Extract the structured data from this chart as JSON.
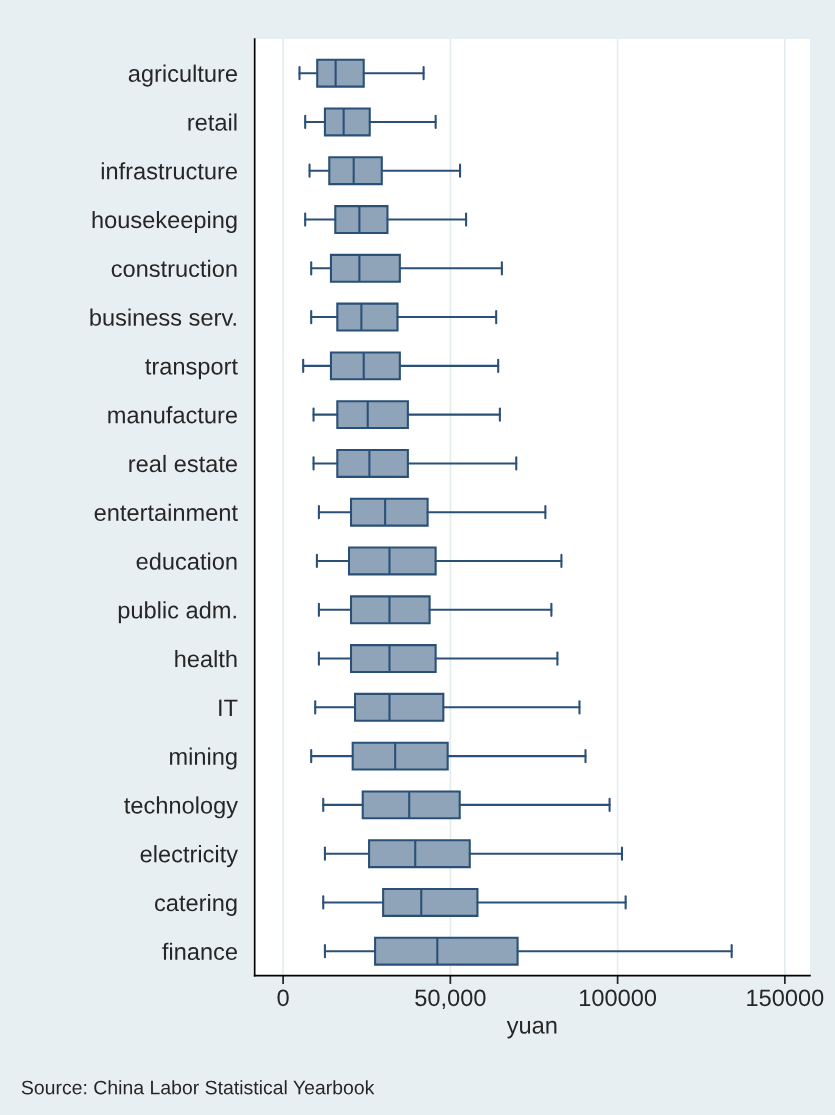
{
  "chart_data": {
    "type": "box",
    "orientation": "horizontal",
    "xlabel": "yuan",
    "categories": [
      "agriculture",
      "retail",
      "infrastructure",
      "housekeeping",
      "construction",
      "business serv.",
      "transport",
      "manufacture",
      "real estate",
      "entertainment",
      "education",
      "public adm.",
      "health",
      "IT",
      "mining",
      "technology",
      "electricity",
      "catering",
      "finance"
    ],
    "boxes": [
      {
        "low": 4900,
        "q1": 10200,
        "median": 15700,
        "q3": 24100,
        "high": 42000
      },
      {
        "low": 6600,
        "q1": 12500,
        "median": 18100,
        "q3": 25900,
        "high": 45600
      },
      {
        "low": 7900,
        "q1": 13800,
        "median": 21100,
        "q3": 29500,
        "high": 52900
      },
      {
        "low": 6600,
        "q1": 15600,
        "median": 22800,
        "q3": 31200,
        "high": 54700
      },
      {
        "low": 8400,
        "q1": 14300,
        "median": 22800,
        "q3": 34900,
        "high": 65400
      },
      {
        "low": 8400,
        "q1": 16200,
        "median": 23400,
        "q3": 34200,
        "high": 63700
      },
      {
        "low": 6000,
        "q1": 14300,
        "median": 24100,
        "q3": 34900,
        "high": 64300
      },
      {
        "low": 9100,
        "q1": 16200,
        "median": 25300,
        "q3": 37300,
        "high": 64800
      },
      {
        "low": 9100,
        "q1": 16200,
        "median": 25800,
        "q3": 37300,
        "high": 69700
      },
      {
        "low": 10700,
        "q1": 20300,
        "median": 30500,
        "q3": 43200,
        "high": 78400
      },
      {
        "low": 10100,
        "q1": 19700,
        "median": 31800,
        "q3": 45600,
        "high": 83200
      },
      {
        "low": 10700,
        "q1": 20300,
        "median": 31800,
        "q3": 43800,
        "high": 80200
      },
      {
        "low": 10700,
        "q1": 20300,
        "median": 31800,
        "q3": 45600,
        "high": 82000
      },
      {
        "low": 9600,
        "q1": 21500,
        "median": 31800,
        "q3": 47900,
        "high": 88600
      },
      {
        "low": 8400,
        "q1": 20800,
        "median": 33500,
        "q3": 49200,
        "high": 90400
      },
      {
        "low": 12000,
        "q1": 23800,
        "median": 37700,
        "q3": 52800,
        "high": 97600
      },
      {
        "low": 12500,
        "q1": 25700,
        "median": 39500,
        "q3": 55800,
        "high": 101300
      },
      {
        "low": 12000,
        "q1": 29900,
        "median": 41300,
        "q3": 58100,
        "high": 102400
      },
      {
        "low": 12500,
        "q1": 27500,
        "median": 46100,
        "q3": 70100,
        "high": 134100
      }
    ],
    "color": "#8fa4b8",
    "xlim": [
      -8500,
      157500
    ],
    "xticks": [
      0,
      {
        "value": 50000,
        "label": "50,000"
      },
      100000,
      150000
    ],
    "grid": "x",
    "annotations": [
      "Source: China Labor Statistical Yearbook"
    ]
  }
}
